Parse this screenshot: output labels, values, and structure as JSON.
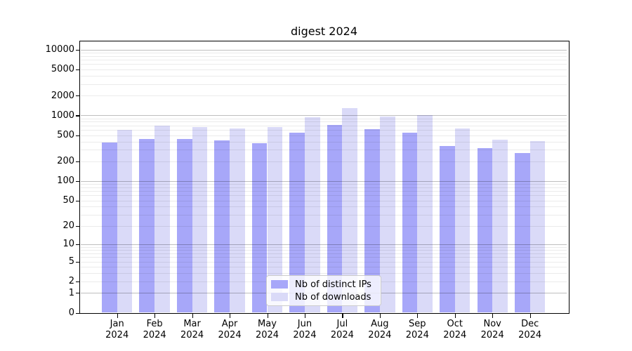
{
  "chart_data": {
    "type": "bar",
    "title": "digest 2024",
    "categories": [
      "Jan 2024",
      "Feb 2024",
      "Mar 2024",
      "Apr 2024",
      "May 2024",
      "Jun 2024",
      "Jul 2024",
      "Aug 2024",
      "Sep 2024",
      "Oct 2024",
      "Nov 2024",
      "Dec 2024"
    ],
    "series": [
      {
        "name": "Nb of distinct IPs",
        "color": "#a7a7f9",
        "values": [
          385,
          434,
          437,
          418,
          378,
          550,
          722,
          615,
          552,
          340,
          315,
          265
        ]
      },
      {
        "name": "Nb of downloads",
        "color": "#dadaf8",
        "values": [
          608,
          690,
          672,
          637,
          660,
          930,
          1300,
          950,
          1000,
          637,
          427,
          410
        ]
      }
    ],
    "xlabel": "",
    "ylabel": "",
    "y_axis": {
      "scale": "log1p",
      "tick_labels": [
        "10000",
        "5000",
        "2000",
        "1000",
        "500",
        "200",
        "100",
        "50",
        "20",
        "10",
        "5",
        "2",
        "1",
        "0"
      ],
      "ylim": [
        0,
        13000
      ]
    },
    "grid": "on",
    "legend_position": "lower-center"
  }
}
